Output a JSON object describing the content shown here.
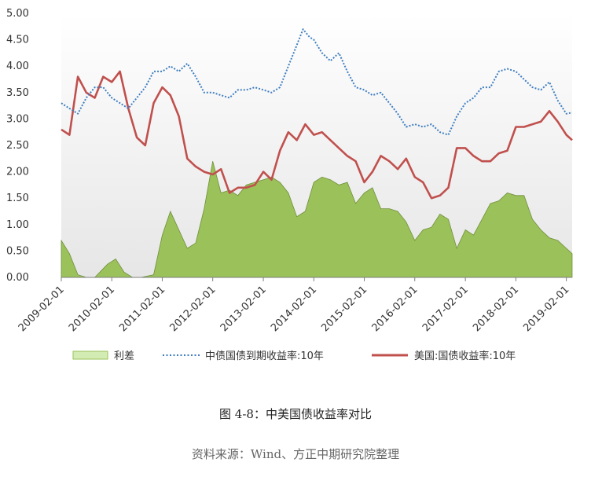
{
  "chart_data": {
    "type": "line",
    "title": "",
    "xlabel": "",
    "ylabel": "",
    "ylim": [
      0,
      5
    ],
    "y_ticks": [
      "0.00",
      "0.50",
      "1.00",
      "1.50",
      "2.00",
      "2.50",
      "3.00",
      "3.50",
      "4.00",
      "4.50",
      "5.00"
    ],
    "x_range": [
      "2009-02-01",
      "2019-03-15"
    ],
    "x_ticks": [
      "2009-02-01",
      "2010-02-01",
      "2011-02-01",
      "2012-02-01",
      "2013-02-01",
      "2014-02-01",
      "2015-02-01",
      "2016-02-01",
      "2017-02-01",
      "2018-02-01",
      "2019-02-01"
    ],
    "grid": false,
    "legend_position": "bottom",
    "series": [
      {
        "name": "利差",
        "style": "area",
        "color": "#9bc15a",
        "x": [
          "2009-02-01",
          "2009-04-01",
          "2009-06-01",
          "2009-08-01",
          "2009-10-01",
          "2010-01-01",
          "2010-03-01",
          "2010-05-01",
          "2010-07-01",
          "2010-09-01",
          "2010-12-01",
          "2011-02-01",
          "2011-04-01",
          "2011-06-01",
          "2011-08-01",
          "2011-10-01",
          "2011-12-01",
          "2012-02-01",
          "2012-04-01",
          "2012-06-01",
          "2012-08-01",
          "2012-10-01",
          "2012-12-01",
          "2013-02-01",
          "2013-04-01",
          "2013-06-01",
          "2013-08-01",
          "2013-10-01",
          "2013-12-01",
          "2014-02-01",
          "2014-04-01",
          "2014-06-01",
          "2014-08-01",
          "2014-10-01",
          "2014-12-01",
          "2015-02-01",
          "2015-04-01",
          "2015-06-01",
          "2015-08-01",
          "2015-10-01",
          "2015-12-01",
          "2016-02-01",
          "2016-04-01",
          "2016-06-01",
          "2016-08-01",
          "2016-10-01",
          "2016-12-01",
          "2017-02-01",
          "2017-04-01",
          "2017-06-01",
          "2017-08-01",
          "2017-10-01",
          "2017-12-01",
          "2018-02-01",
          "2018-04-01",
          "2018-06-01",
          "2018-08-01",
          "2018-10-01",
          "2018-12-01",
          "2019-02-01",
          "2019-03-15"
        ],
        "values": [
          0.7,
          0.45,
          0.05,
          0.0,
          0.0,
          0.25,
          0.35,
          0.1,
          0.0,
          0.0,
          0.05,
          0.8,
          1.25,
          0.9,
          0.55,
          0.65,
          1.3,
          2.2,
          1.6,
          1.65,
          1.55,
          1.75,
          1.8,
          1.85,
          1.9,
          1.8,
          1.6,
          1.15,
          1.25,
          1.8,
          1.9,
          1.85,
          1.75,
          1.8,
          1.4,
          1.6,
          1.7,
          1.3,
          1.3,
          1.25,
          1.05,
          0.7,
          0.9,
          0.95,
          1.2,
          1.1,
          0.55,
          0.9,
          0.8,
          1.1,
          1.4,
          1.45,
          1.6,
          1.55,
          1.55,
          1.1,
          0.9,
          0.75,
          0.7,
          0.55,
          0.45
        ]
      },
      {
        "name": "中债国债到期收益率:10年",
        "style": "dotted",
        "color": "#3f7ec1",
        "x": [
          "2009-02-01",
          "2009-04-01",
          "2009-06-01",
          "2009-08-01",
          "2009-10-01",
          "2009-12-01",
          "2010-02-01",
          "2010-04-01",
          "2010-06-01",
          "2010-08-01",
          "2010-10-01",
          "2010-12-01",
          "2011-02-01",
          "2011-04-01",
          "2011-06-01",
          "2011-08-01",
          "2011-10-01",
          "2011-12-01",
          "2012-02-01",
          "2012-04-01",
          "2012-06-01",
          "2012-08-01",
          "2012-10-01",
          "2012-12-01",
          "2013-02-01",
          "2013-04-01",
          "2013-06-01",
          "2013-08-01",
          "2013-10-01",
          "2013-11-15",
          "2014-01-01",
          "2014-02-01",
          "2014-04-01",
          "2014-06-01",
          "2014-08-01",
          "2014-10-01",
          "2014-12-01",
          "2015-02-01",
          "2015-04-01",
          "2015-06-01",
          "2015-08-01",
          "2015-10-01",
          "2015-12-01",
          "2016-02-01",
          "2016-04-01",
          "2016-06-01",
          "2016-08-01",
          "2016-10-01",
          "2016-12-01",
          "2017-02-01",
          "2017-04-01",
          "2017-06-01",
          "2017-08-01",
          "2017-10-01",
          "2017-12-01",
          "2018-02-01",
          "2018-04-01",
          "2018-06-01",
          "2018-08-01",
          "2018-10-01",
          "2018-12-01",
          "2019-02-01",
          "2019-03-15"
        ],
        "values": [
          3.3,
          3.2,
          3.1,
          3.4,
          3.6,
          3.6,
          3.4,
          3.3,
          3.2,
          3.4,
          3.6,
          3.9,
          3.9,
          4.0,
          3.9,
          4.05,
          3.8,
          3.5,
          3.5,
          3.45,
          3.4,
          3.55,
          3.55,
          3.6,
          3.55,
          3.5,
          3.6,
          4.0,
          4.4,
          4.7,
          4.55,
          4.5,
          4.25,
          4.1,
          4.25,
          3.9,
          3.6,
          3.55,
          3.45,
          3.5,
          3.3,
          3.1,
          2.85,
          2.9,
          2.85,
          2.9,
          2.75,
          2.7,
          3.05,
          3.3,
          3.4,
          3.6,
          3.6,
          3.9,
          3.95,
          3.9,
          3.75,
          3.6,
          3.55,
          3.7,
          3.35,
          3.1,
          3.12
        ]
      },
      {
        "name": "美国:国债收益率:10年",
        "style": "line",
        "color": "#c0504d",
        "x": [
          "2009-02-01",
          "2009-04-01",
          "2009-06-01",
          "2009-08-01",
          "2009-10-01",
          "2009-12-01",
          "2010-02-01",
          "2010-04-01",
          "2010-06-01",
          "2010-08-01",
          "2010-10-01",
          "2010-12-01",
          "2011-02-01",
          "2011-04-01",
          "2011-06-01",
          "2011-08-01",
          "2011-10-01",
          "2011-12-01",
          "2012-02-01",
          "2012-04-01",
          "2012-06-01",
          "2012-08-01",
          "2012-10-01",
          "2012-12-01",
          "2013-02-01",
          "2013-04-01",
          "2013-06-01",
          "2013-08-01",
          "2013-10-01",
          "2013-12-01",
          "2014-02-01",
          "2014-04-01",
          "2014-06-01",
          "2014-08-01",
          "2014-10-01",
          "2014-12-01",
          "2015-02-01",
          "2015-04-01",
          "2015-06-01",
          "2015-08-01",
          "2015-10-01",
          "2015-12-01",
          "2016-02-01",
          "2016-04-01",
          "2016-06-01",
          "2016-08-01",
          "2016-10-01",
          "2016-12-01",
          "2017-02-01",
          "2017-04-01",
          "2017-06-01",
          "2017-08-01",
          "2017-10-01",
          "2017-12-01",
          "2018-02-01",
          "2018-04-01",
          "2018-06-01",
          "2018-08-01",
          "2018-10-01",
          "2018-12-01",
          "2019-02-01",
          "2019-03-15"
        ],
        "values": [
          2.8,
          2.7,
          3.8,
          3.5,
          3.4,
          3.8,
          3.7,
          3.9,
          3.2,
          2.65,
          2.5,
          3.3,
          3.6,
          3.45,
          3.05,
          2.25,
          2.1,
          2.0,
          1.95,
          2.05,
          1.6,
          1.7,
          1.7,
          1.75,
          2.0,
          1.85,
          2.4,
          2.75,
          2.6,
          2.9,
          2.7,
          2.75,
          2.6,
          2.45,
          2.3,
          2.2,
          1.8,
          2.0,
          2.3,
          2.2,
          2.05,
          2.25,
          1.9,
          1.8,
          1.5,
          1.55,
          1.7,
          2.45,
          2.45,
          2.3,
          2.2,
          2.2,
          2.35,
          2.4,
          2.85,
          2.85,
          2.9,
          2.95,
          3.15,
          2.95,
          2.7,
          2.6
        ]
      }
    ]
  },
  "legend": [
    {
      "label": "利差",
      "swatch": "area"
    },
    {
      "label": "中债国债到期收益率:10年",
      "swatch": "dotted"
    },
    {
      "label": "美国:国债收益率:10年",
      "swatch": "line"
    }
  ],
  "captions": {
    "figure": "图 4-8：中美国债收益率对比",
    "source": "资料来源：Wind、方正中期研究院整理"
  }
}
